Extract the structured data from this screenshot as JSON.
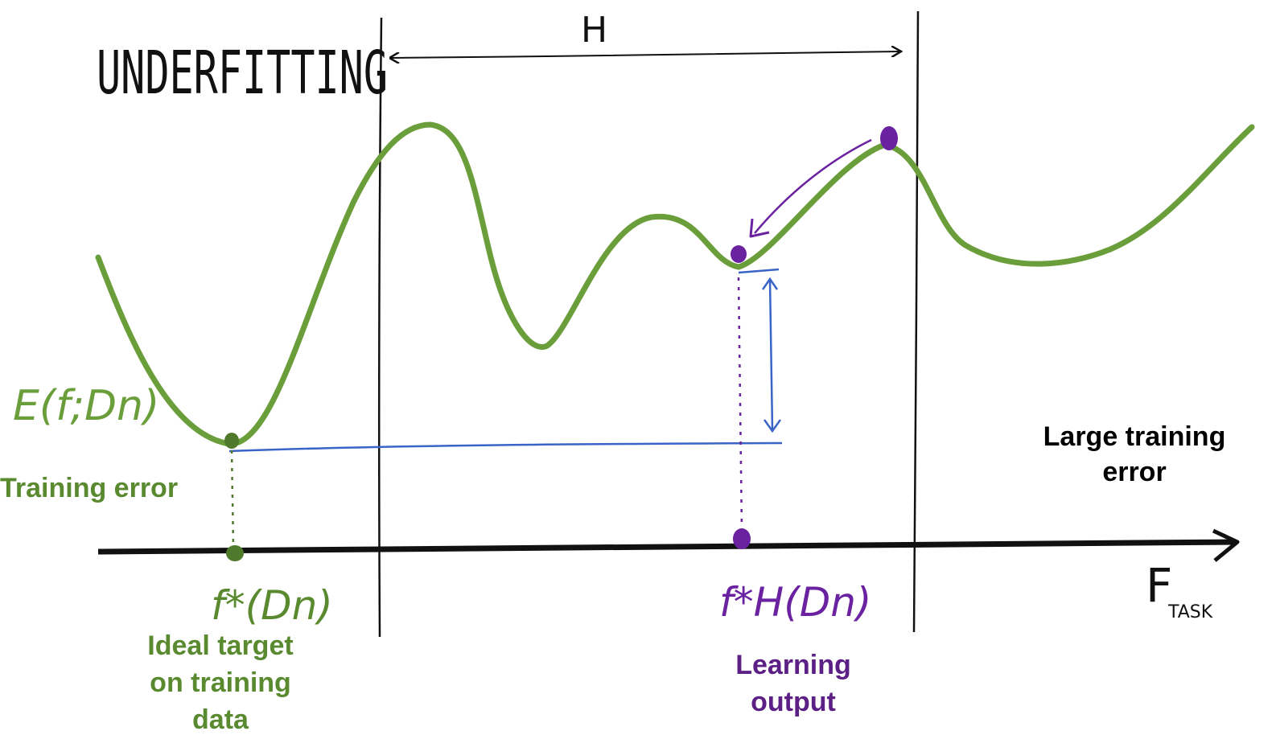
{
  "title": "UNDERFITTING",
  "hypothesis_space_label": "H",
  "y_axis_label": "E(f;Dn)",
  "x_axis_label": "F",
  "x_axis_subscript": "TASK",
  "training_error_label": "Training error",
  "large_training_error_label": [
    "Large training",
    "error"
  ],
  "ideal_target_symbol": "f*(Dn)",
  "ideal_target_label": [
    "Ideal target",
    "on training",
    "data"
  ],
  "learning_output_symbol": "f*H(Dn)",
  "learning_output_label": [
    "Learning",
    "output"
  ],
  "colors": {
    "curve": "#6a9e3a",
    "ideal": "#4f7a2d",
    "learning": "#5b1f86",
    "learning_points": "#6a22a0",
    "gap": "#3a64c8",
    "ink": "#111111"
  }
}
